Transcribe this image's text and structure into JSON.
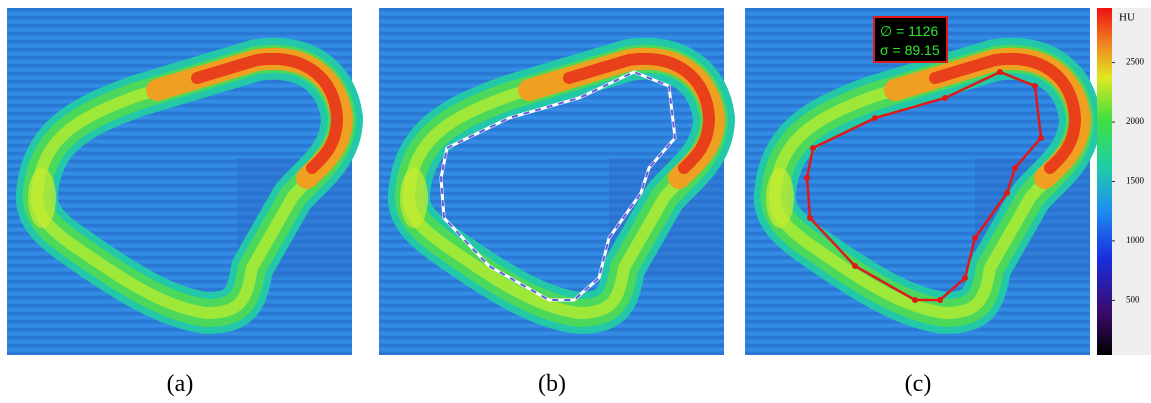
{
  "panels": [
    {
      "label": "(a)"
    },
    {
      "label": "(b)"
    },
    {
      "label": "(c)",
      "annotation": {
        "diameter": "∅ = 1126",
        "sigma": "σ = 89.15"
      }
    }
  ],
  "colorbar": {
    "title": "HU",
    "lim": [
      40,
      2960
    ],
    "ticks": [
      500,
      1000,
      1500,
      2000,
      2500
    ]
  }
}
